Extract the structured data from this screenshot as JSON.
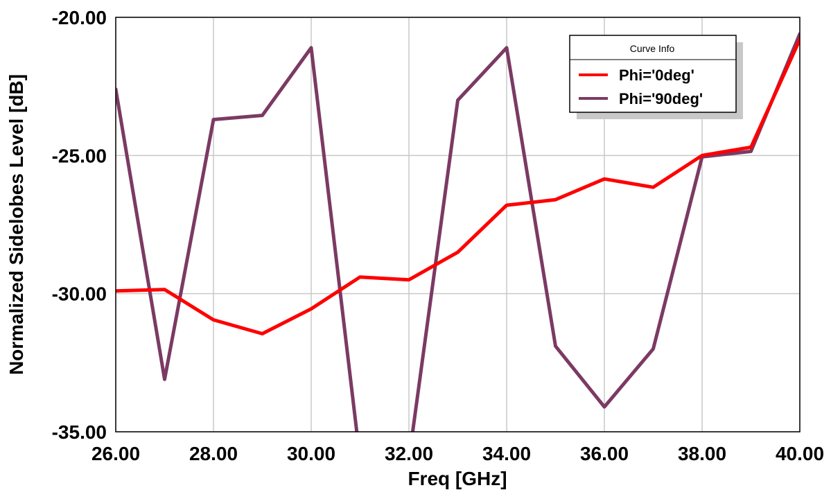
{
  "chart_data": {
    "type": "line",
    "xlabel": "Freq [GHz]",
    "ylabel": "Normalized Sidelobes Level [dB]",
    "xlim": [
      26,
      40
    ],
    "ylim": [
      -35,
      -20
    ],
    "x_ticks": [
      26,
      28,
      30,
      32,
      34,
      36,
      38,
      40
    ],
    "x_tick_labels": [
      "26.00",
      "28.00",
      "30.00",
      "32.00",
      "34.00",
      "36.00",
      "38.00",
      "40.00"
    ],
    "y_ticks": [
      -20,
      -25,
      -30,
      -35
    ],
    "y_tick_labels": [
      "-20.00",
      "-25.00",
      "-30.00",
      "-35.00"
    ],
    "grid": true,
    "legend": {
      "title": "Curve Info",
      "placement": "top-right"
    },
    "x": [
      26,
      27,
      28,
      29,
      30,
      31,
      32,
      33,
      34,
      35,
      36,
      37,
      38,
      39,
      40
    ],
    "series": [
      {
        "name": "Phi='0deg'",
        "color": "#ff0000",
        "values": [
          -29.9,
          -29.85,
          -30.95,
          -31.45,
          -30.55,
          -29.4,
          -29.5,
          -28.5,
          -26.8,
          -26.6,
          -25.85,
          -26.15,
          -25.0,
          -24.7,
          -20.8
        ]
      },
      {
        "name": "Phi='90deg'",
        "color": "#7b3a63",
        "values": [
          -22.6,
          -33.1,
          -23.7,
          -23.55,
          -21.1,
          -36.0,
          -36.0,
          -23.0,
          -21.1,
          -31.9,
          -34.1,
          -32.0,
          -25.05,
          -24.85,
          -20.6
        ]
      }
    ]
  }
}
